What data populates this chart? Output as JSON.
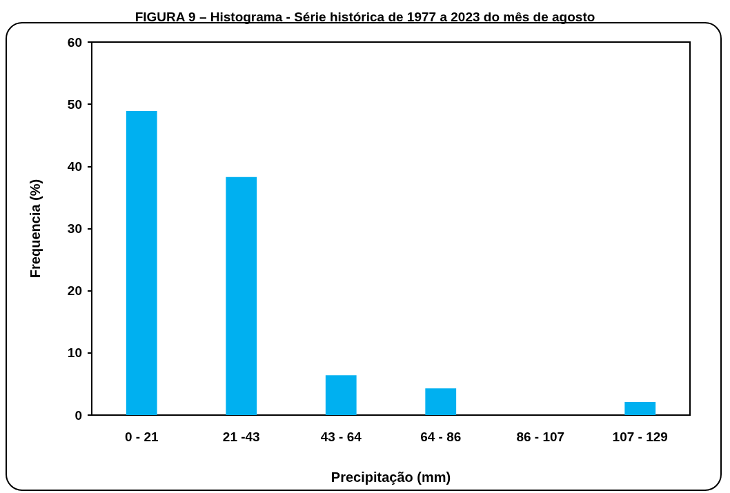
{
  "chart_data": {
    "type": "bar",
    "title": "FIGURA 9 – Histograma - Série histórica de 1977 a 2023 do mês de agosto",
    "xlabel": "Precipitação (mm)",
    "ylabel": "Frequencia (%)",
    "categories": [
      "0 - 21",
      "21 -43",
      "43 - 64",
      "64 - 86",
      "86 - 107",
      "107 - 129"
    ],
    "values": [
      48.9,
      38.3,
      6.4,
      4.3,
      0,
      2.1
    ],
    "color": "#00b0f0",
    "ylim": [
      0,
      60
    ],
    "yticks": [
      0,
      10,
      20,
      30,
      40,
      50,
      60
    ],
    "grid": false
  }
}
